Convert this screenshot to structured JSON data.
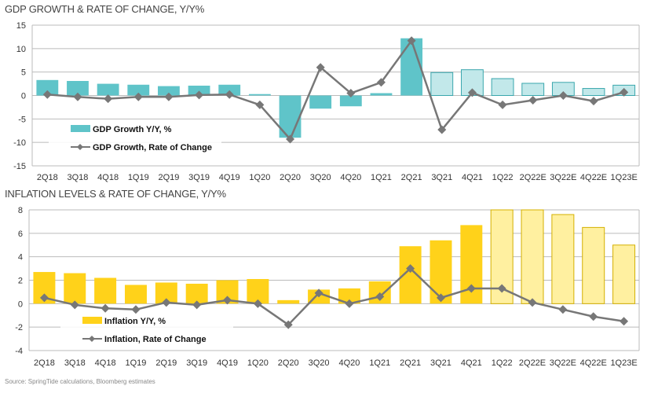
{
  "source_note": "Source: SpringTide calculations, Bloomberg estimates",
  "colors": {
    "gdp_bar": "#5fc4c9",
    "gdp_bar_estimate": "#c2e8ea",
    "gdp_bar_estimate_border": "#3aa7ad",
    "infl_bar": "#ffd21a",
    "infl_bar_estimate": "#fff0a0",
    "infl_bar_estimate_border": "#d4b000",
    "line": "#777777",
    "grid": "#bbbbbb"
  },
  "chart_data": [
    {
      "type": "bar",
      "title": "GDP GROWTH & RATE OF CHANGE, Y/Y%",
      "xlabel": "",
      "ylabel": "",
      "ylim": [
        -15,
        15
      ],
      "yticks": [
        15,
        10,
        5,
        0,
        -5,
        -10,
        -15
      ],
      "grid": true,
      "legend": "bottom-left",
      "categories": [
        "2Q18",
        "3Q18",
        "4Q18",
        "1Q19",
        "2Q19",
        "3Q19",
        "4Q19",
        "1Q20",
        "2Q20",
        "3Q20",
        "4Q20",
        "1Q21",
        "2Q21",
        "3Q21",
        "4Q21",
        "1Q22",
        "2Q22E",
        "3Q22E",
        "4Q22E",
        "1Q23E"
      ],
      "estimate_flags": [
        false,
        false,
        false,
        false,
        false,
        false,
        false,
        false,
        false,
        false,
        false,
        false,
        false,
        true,
        true,
        true,
        true,
        true,
        true,
        true
      ],
      "series": [
        {
          "name": "GDP Growth Y/Y, %",
          "type": "bar",
          "values": [
            3.3,
            3.1,
            2.5,
            2.3,
            2.0,
            2.1,
            2.3,
            0.3,
            -9.0,
            -2.8,
            -2.3,
            0.5,
            12.2,
            4.9,
            5.5,
            3.6,
            2.6,
            2.8,
            1.5,
            2.2
          ]
        },
        {
          "name": "GDP Growth, Rate of Change",
          "type": "line",
          "values": [
            0.2,
            -0.3,
            -0.7,
            -0.3,
            -0.3,
            0.1,
            0.2,
            -2.0,
            -9.3,
            6.0,
            0.5,
            2.8,
            11.7,
            -7.3,
            0.6,
            -2.0,
            -1.0,
            0.0,
            -1.2,
            0.7
          ]
        }
      ]
    },
    {
      "type": "bar",
      "title": "INFLATION LEVELS & RATE OF CHANGE, Y/Y%",
      "xlabel": "",
      "ylabel": "",
      "ylim": [
        -4,
        8
      ],
      "yticks": [
        8,
        6,
        4,
        2,
        0,
        -2,
        -4
      ],
      "grid": true,
      "legend": "bottom-left",
      "categories": [
        "2Q18",
        "3Q18",
        "4Q18",
        "1Q19",
        "2Q19",
        "3Q19",
        "4Q19",
        "1Q20",
        "2Q20",
        "3Q20",
        "4Q20",
        "1Q21",
        "2Q21",
        "3Q21",
        "4Q21",
        "1Q22",
        "2Q22E",
        "3Q22E",
        "4Q22E",
        "1Q23E"
      ],
      "estimate_flags": [
        false,
        false,
        false,
        false,
        false,
        false,
        false,
        false,
        false,
        false,
        false,
        false,
        false,
        false,
        false,
        true,
        true,
        true,
        true,
        true
      ],
      "series": [
        {
          "name": "Inflation Y/Y, %",
          "type": "bar",
          "values": [
            2.7,
            2.6,
            2.2,
            1.6,
            1.8,
            1.7,
            2.0,
            2.1,
            0.3,
            1.2,
            1.3,
            1.9,
            4.9,
            5.4,
            6.7,
            8.0,
            8.1,
            7.6,
            6.5,
            5.0
          ]
        },
        {
          "name": "Inflation, Rate of Change",
          "type": "line",
          "values": [
            0.5,
            -0.1,
            -0.4,
            -0.5,
            0.1,
            -0.1,
            0.3,
            0.0,
            -1.8,
            0.9,
            0.0,
            0.6,
            3.0,
            0.5,
            1.3,
            1.3,
            0.1,
            -0.5,
            -1.1,
            -1.5
          ]
        }
      ]
    }
  ]
}
